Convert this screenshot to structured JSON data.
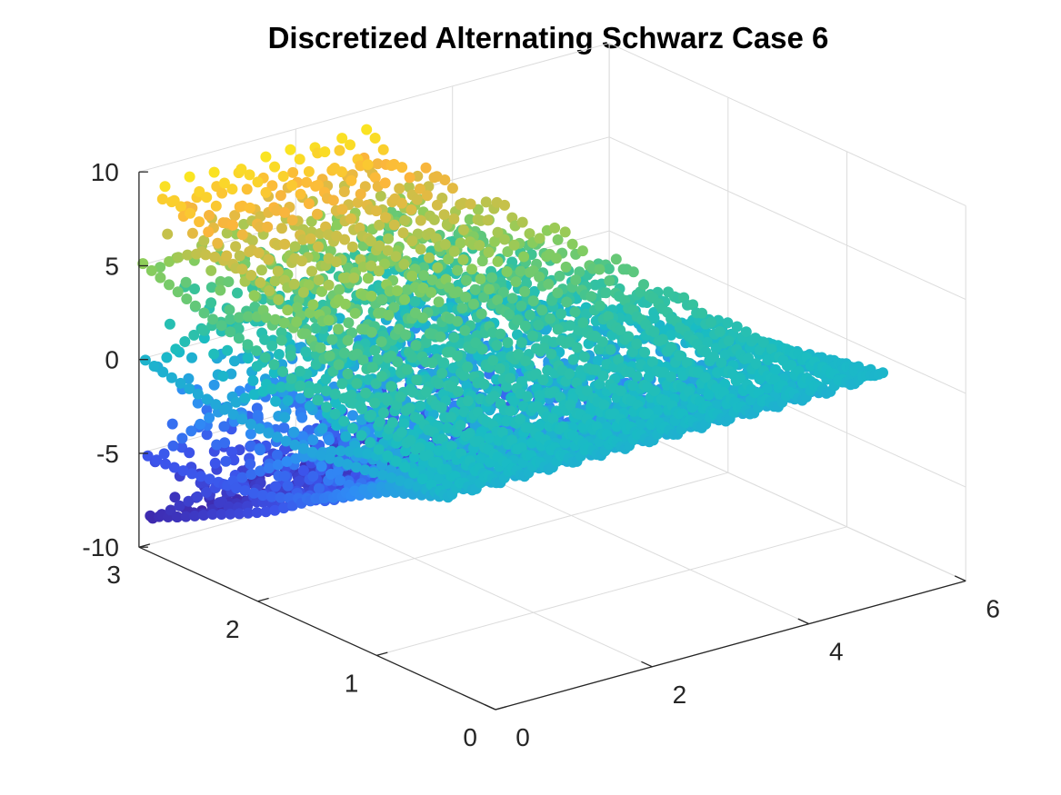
{
  "chart_data": {
    "type": "scatter3d",
    "title": "Discretized Alternating Schwarz Case 6",
    "xlabel": "",
    "ylabel": "",
    "zlabel": "",
    "xlim": [
      0,
      6
    ],
    "ylim": [
      0,
      3
    ],
    "zlim": [
      -10,
      10
    ],
    "x_ticks": [
      "0",
      "2",
      "4",
      "6"
    ],
    "y_ticks": [
      "0",
      "1",
      "2",
      "3"
    ],
    "z_ticks": [
      "-10",
      "-5",
      "0",
      "5",
      "10"
    ],
    "grid": true,
    "colormap": "parula",
    "colors": {
      "low": "#3e26a8",
      "mid_low": "#2f8cf5",
      "mid": "#19bcc4",
      "mid_high": "#8ccd5a",
      "high_orange": "#fbb53c",
      "high": "#f9fb15",
      "axis": "#262626",
      "grid": "#dcdcdc"
    },
    "series": [
      {
        "x_range": [
          0,
          6
        ],
        "y_range": [
          0,
          3
        ],
        "approx_z_range": [
          -9,
          9.7
        ],
        "values": [
          {
            "y": 3.0,
            "x_end": 3.5,
            "amplitude": 9.0,
            "periods_per_unit": 3.1
          },
          {
            "y": 2.5,
            "x_end": 4.0,
            "amplitude": 7.0,
            "periods_per_unit": 3.1
          },
          {
            "y": 2.0,
            "x_end": 4.5,
            "amplitude": 5.5,
            "periods_per_unit": 3.1
          },
          {
            "y": 1.5,
            "x_end": 5.0,
            "amplitude": 3.5,
            "periods_per_unit": 3.1
          },
          {
            "y": 1.0,
            "x_end": 5.4,
            "amplitude": 1.5,
            "periods_per_unit": 3.1
          },
          {
            "y": 0.5,
            "x_end": 5.7,
            "amplitude": 0.3,
            "periods_per_unit": 3.1
          }
        ]
      }
    ]
  }
}
